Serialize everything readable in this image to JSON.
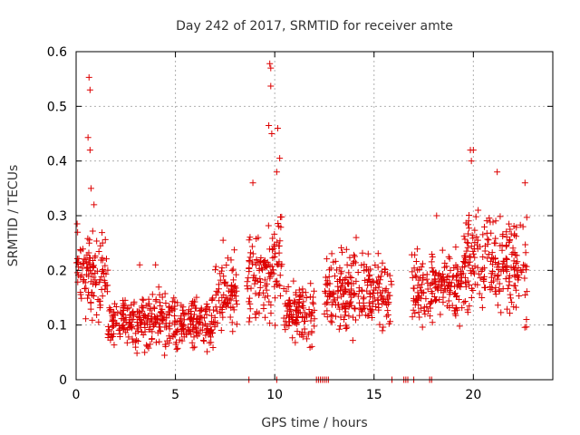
{
  "chart_data": {
    "type": "scatter",
    "title": "Day 242 of 2017, SRMTID for receiver amte",
    "xlabel": "GPS time / hours",
    "ylabel": "SRMTID / TECUs",
    "xlim": [
      0,
      24
    ],
    "ylim": [
      0,
      0.6
    ],
    "x_ticks": [
      0,
      5,
      10,
      15,
      20
    ],
    "x_tick_labels": [
      "0",
      "5",
      "10",
      "15",
      "20"
    ],
    "y_ticks": [
      0,
      0.1,
      0.2,
      0.3,
      0.4,
      0.5,
      0.6
    ],
    "y_tick_labels": [
      "0",
      "0.1",
      "0.2",
      "0.3",
      "0.4",
      "0.5",
      "0.6"
    ],
    "grid": true,
    "marker": "+",
    "series_color": "#dd0000",
    "series": [
      {
        "name": "SRMTID",
        "notable_points": [
          {
            "x": 0.65,
            "y": 0.553
          },
          {
            "x": 0.7,
            "y": 0.53
          },
          {
            "x": 0.6,
            "y": 0.443
          },
          {
            "x": 0.7,
            "y": 0.42
          },
          {
            "x": 0.75,
            "y": 0.35
          },
          {
            "x": 0.9,
            "y": 0.32
          },
          {
            "x": 0.05,
            "y": 0.285
          },
          {
            "x": 9.75,
            "y": 0.578
          },
          {
            "x": 9.8,
            "y": 0.57
          },
          {
            "x": 9.8,
            "y": 0.537
          },
          {
            "x": 9.7,
            "y": 0.465
          },
          {
            "x": 9.85,
            "y": 0.45
          },
          {
            "x": 10.15,
            "y": 0.46
          },
          {
            "x": 10.25,
            "y": 0.405
          },
          {
            "x": 10.1,
            "y": 0.38
          },
          {
            "x": 8.9,
            "y": 0.36
          },
          {
            "x": 19.85,
            "y": 0.42
          },
          {
            "x": 20.0,
            "y": 0.42
          },
          {
            "x": 21.2,
            "y": 0.38
          },
          {
            "x": 19.9,
            "y": 0.4
          },
          {
            "x": 22.6,
            "y": 0.36
          },
          {
            "x": 22.5,
            "y": 0.28
          },
          {
            "x": 18.15,
            "y": 0.3
          },
          {
            "x": 3.2,
            "y": 0.21
          },
          {
            "x": 4.0,
            "y": 0.21
          },
          {
            "x": 7.4,
            "y": 0.255
          },
          {
            "x": 14.1,
            "y": 0.26
          }
        ],
        "segments": [
          {
            "x_start": 0.0,
            "x_end": 1.6,
            "y_min": 0.08,
            "y_max": 0.3
          },
          {
            "x_start": 1.6,
            "x_end": 3.0,
            "y_min": 0.04,
            "y_max": 0.17
          },
          {
            "x_start": 3.0,
            "x_end": 5.0,
            "y_min": 0.04,
            "y_max": 0.18
          },
          {
            "x_start": 5.0,
            "x_end": 7.0,
            "y_min": 0.04,
            "y_max": 0.17
          },
          {
            "x_start": 7.0,
            "x_end": 8.1,
            "y_min": 0.06,
            "y_max": 0.25
          },
          {
            "x_start": 8.6,
            "x_end": 9.6,
            "y_min": 0.07,
            "y_max": 0.3
          },
          {
            "x_start": 9.6,
            "x_end": 10.4,
            "y_min": 0.08,
            "y_max": 0.33
          },
          {
            "x_start": 10.4,
            "x_end": 12.0,
            "y_min": 0.05,
            "y_max": 0.2
          },
          {
            "x_start": 12.5,
            "x_end": 15.9,
            "y_min": 0.06,
            "y_max": 0.26
          },
          {
            "x_start": 16.9,
            "x_end": 18.0,
            "y_min": 0.08,
            "y_max": 0.26
          },
          {
            "x_start": 18.0,
            "x_end": 19.5,
            "y_min": 0.08,
            "y_max": 0.27
          },
          {
            "x_start": 19.5,
            "x_end": 21.0,
            "y_min": 0.08,
            "y_max": 0.35
          },
          {
            "x_start": 21.0,
            "x_end": 22.7,
            "y_min": 0.08,
            "y_max": 0.33
          }
        ],
        "zero_points_x": [
          8.7,
          10.1,
          12.1,
          12.2,
          12.3,
          12.4,
          12.5,
          12.6,
          12.7,
          15.9,
          16.5,
          16.6,
          16.7,
          17.0,
          17.8,
          17.9
        ]
      }
    ]
  }
}
